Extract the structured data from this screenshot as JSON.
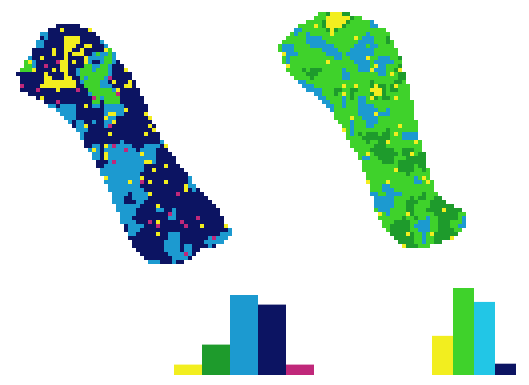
{
  "palette": {
    "yellow": "#f2ee1f",
    "green": "#1e9b2c",
    "light_green": "#3fd22b",
    "cyan_blue": "#1c9ad0",
    "light_cyan": "#22c6e6",
    "navy": "#0c1462",
    "magenta": "#c0287a"
  },
  "maps": [
    {
      "id": "left",
      "dominant_colors": [
        "navy",
        "cyan_blue",
        "light_green",
        "yellow",
        "magenta"
      ]
    },
    {
      "id": "right",
      "dominant_colors": [
        "light_green",
        "cyan_blue",
        "yellow",
        "green",
        "navy"
      ]
    }
  ],
  "chart_data": [
    {
      "type": "bar",
      "categories": [
        "yellow",
        "green",
        "cyan_blue",
        "navy",
        "magenta"
      ],
      "values": [
        0.13,
        0.38,
        1.0,
        0.88,
        0.13
      ],
      "ylim": [
        0,
        1
      ],
      "title": "",
      "xlabel": "",
      "ylabel": ""
    },
    {
      "type": "bar",
      "categories": [
        "yellow",
        "light_green",
        "light_cyan",
        "navy"
      ],
      "values": [
        0.45,
        1.0,
        0.84,
        0.13
      ],
      "ylim": [
        0,
        1
      ],
      "title": "",
      "xlabel": "",
      "ylabel": ""
    }
  ]
}
